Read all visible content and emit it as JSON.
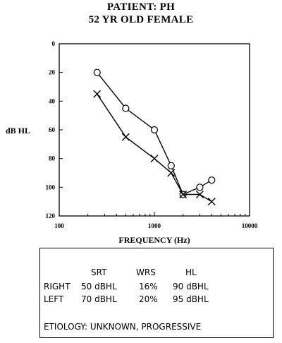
{
  "header": {
    "line1": "PATIENT:  PH",
    "line2": "52 YR OLD FEMALE"
  },
  "chart_data": {
    "type": "line",
    "title": "PATIENT:  PH\n52 YR OLD FEMALE",
    "xlabel": "FREQUENCY (Hz)",
    "ylabel": "dB HL",
    "xscale": "log",
    "xlim": [
      100,
      10000
    ],
    "ylim": [
      0,
      120
    ],
    "y_inverted": true,
    "x_tick_labels": [
      "100",
      "1000",
      "10000"
    ],
    "x_ticks": [
      100,
      1000,
      10000
    ],
    "y_ticks": [
      0,
      20,
      40,
      60,
      80,
      100,
      120
    ],
    "grid": false,
    "series": [
      {
        "marker": "circle",
        "x": [
          250,
          500,
          1000,
          1500,
          2000,
          3000,
          4000
        ],
        "y": [
          20,
          45,
          60,
          85,
          105,
          100,
          95
        ]
      },
      {
        "marker": "x",
        "x": [
          250,
          500,
          1000,
          1500,
          2000,
          3000,
          4000
        ],
        "y": [
          35,
          65,
          80,
          90,
          105,
          105,
          110
        ]
      }
    ]
  },
  "table": {
    "headers": [
      "SRT",
      "WRS",
      "HL"
    ],
    "rows": [
      {
        "label": "RIGHT",
        "srt": "50 dBHL",
        "wrs": "16%",
        "hl": "90 dBHL"
      },
      {
        "label": "LEFT",
        "srt": "70 dBHL",
        "wrs": "20%",
        "hl": "95 dBHL"
      }
    ],
    "etiology": "ETIOLOGY: UNKNOWN, PROGRESSIVE"
  }
}
